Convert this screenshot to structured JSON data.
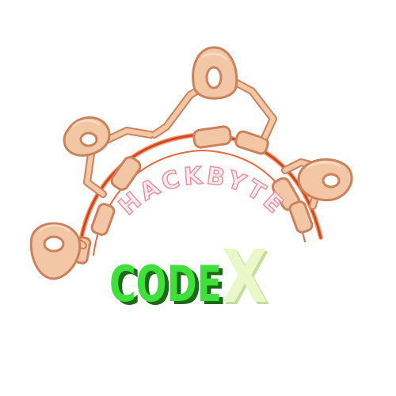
{
  "logo": {
    "arc_text": "HACKBYTE",
    "main_text_part1": "CODE",
    "main_text_part2": "X",
    "colors": {
      "link_fill": "#f3c6a6",
      "link_stroke": "#c9825c",
      "link_highlight": "#fbe3cf",
      "wire": "#d3461c",
      "wire_glow": "#f4a07c",
      "arc_text_fill": "#fde9ee",
      "arc_text_stroke": "#e8949d",
      "code_green": "#3fe03a",
      "code_dark": "#1c6a18",
      "x_fill": "#eaf7c8",
      "x_shadow": "#c7dc9d"
    }
  }
}
